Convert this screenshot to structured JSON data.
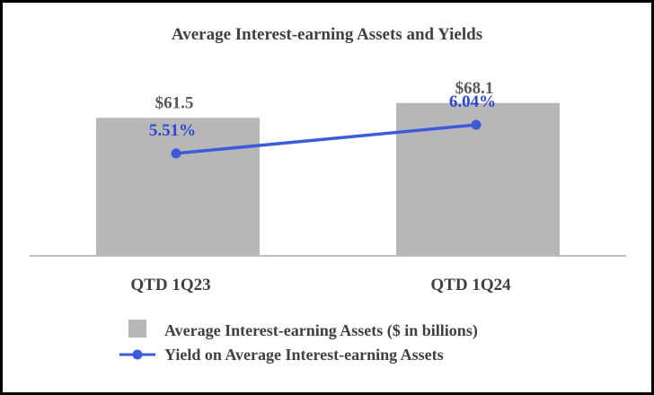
{
  "chart_data": {
    "type": "bar",
    "title": "Average Interest-earning Assets and Yields",
    "categories": [
      "QTD 1Q23",
      "QTD 1Q24"
    ],
    "series": [
      {
        "name": "Average Interest-earning Assets ($ in billions)",
        "kind": "bar",
        "values": [
          61.5,
          68.1
        ],
        "labels": [
          "$61.5",
          "$68.1"
        ],
        "color": "#b7b7b7",
        "label_color": "#595959"
      },
      {
        "name": "Yield on Average Interest-earning Assets",
        "kind": "line",
        "values": [
          5.51,
          6.04
        ],
        "labels": [
          "5.51%",
          "6.04%"
        ],
        "color": "#3b5bdb",
        "label_color": "#2a47d8"
      }
    ],
    "bar_axis_range": [
      0,
      70
    ],
    "line_axis_range": [
      0,
      12
    ],
    "grid": false,
    "legend_position": "bottom",
    "colors": {
      "text": "#404040",
      "axis": "#bfbfbf",
      "border": "#000000"
    }
  }
}
